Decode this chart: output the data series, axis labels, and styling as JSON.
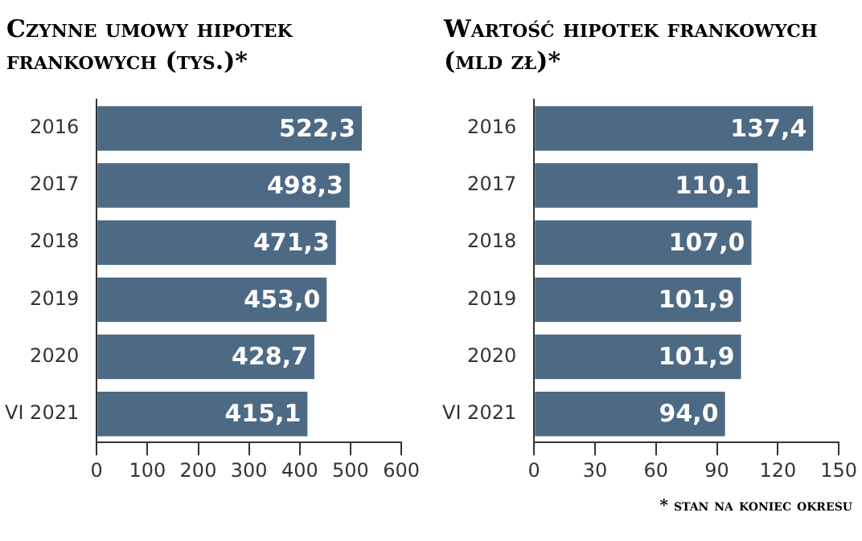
{
  "chart_data": [
    {
      "type": "bar",
      "orientation": "horizontal",
      "title": "Czynne umowy hipotek frankowych (tys.)*",
      "categories": [
        "2016",
        "2017",
        "2018",
        "2019",
        "2020",
        "VI 2021"
      ],
      "values": [
        522.3,
        498.3,
        471.3,
        453.0,
        428.7,
        415.1
      ],
      "value_labels": [
        "522,3",
        "498,3",
        "471,3",
        "453,0",
        "428,7",
        "415,1"
      ],
      "color": "#4d6a85",
      "xlim": [
        0,
        600
      ],
      "xticks": [
        0,
        100,
        200,
        300,
        400,
        500,
        600
      ],
      "grid": false
    },
    {
      "type": "bar",
      "orientation": "horizontal",
      "title": "Wartość hipotek frankowych (mld zł)*",
      "categories": [
        "2016",
        "2017",
        "2018",
        "2019",
        "2020",
        "VI 2021"
      ],
      "values": [
        137.4,
        110.1,
        107.0,
        101.9,
        101.9,
        94.0
      ],
      "value_labels": [
        "137,4",
        "110,1",
        "107,0",
        "101,9",
        "101,9",
        "94,0"
      ],
      "color": "#4d6a85",
      "xlim": [
        0,
        150
      ],
      "xticks": [
        0,
        30,
        60,
        90,
        120,
        150
      ],
      "grid": false,
      "annotations": [
        "* stan na koniec okresu"
      ]
    }
  ]
}
